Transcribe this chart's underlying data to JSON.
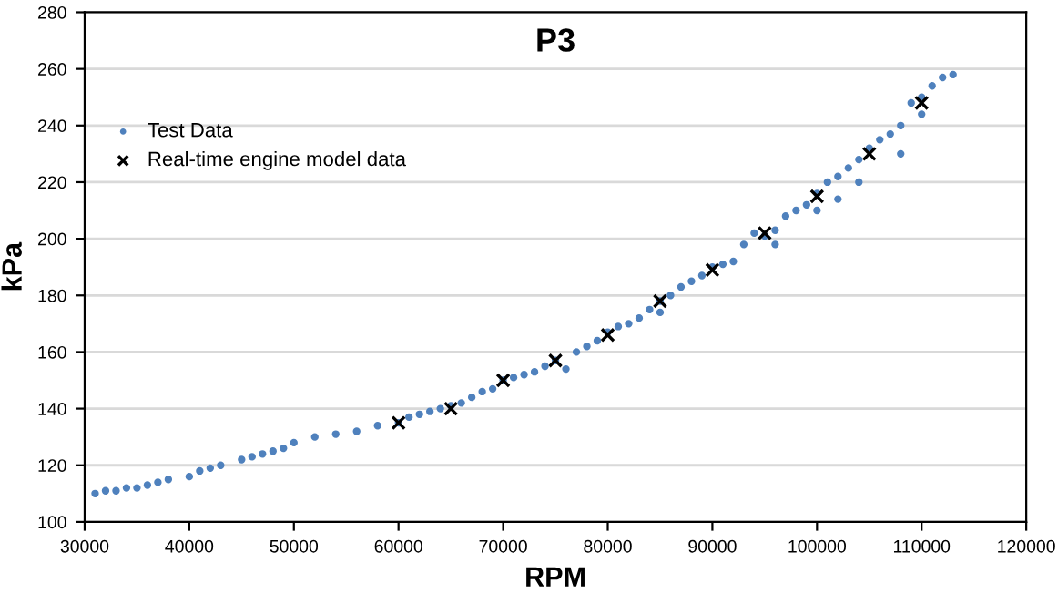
{
  "chart_data": {
    "type": "scatter",
    "title": "P3",
    "xlabel": "RPM",
    "ylabel": "kPa",
    "series": [
      {
        "name": "Test Data",
        "color": "#4f81bd",
        "marker": "circle",
        "x": [
          31000,
          32000,
          33000,
          34000,
          35000,
          36000,
          37000,
          38000,
          40000,
          41000,
          42000,
          43000,
          45000,
          46000,
          47000,
          48000,
          49000,
          50000,
          52000,
          54000,
          56000,
          58000,
          60000,
          61000,
          62000,
          63000,
          64000,
          65000,
          66000,
          67000,
          68000,
          69000,
          70000,
          71000,
          72000,
          73000,
          74000,
          75000,
          76000,
          77000,
          78000,
          79000,
          80000,
          81000,
          82000,
          83000,
          84000,
          85000,
          85000,
          86000,
          87000,
          88000,
          89000,
          90000,
          91000,
          92000,
          93000,
          94000,
          95000,
          96000,
          96000,
          97000,
          98000,
          99000,
          100000,
          100000,
          101000,
          102000,
          102000,
          103000,
          104000,
          104000,
          105000,
          106000,
          107000,
          108000,
          108000,
          109000,
          110000,
          110000,
          111000,
          112000,
          113000
        ],
        "values": [
          110,
          111,
          111,
          112,
          112,
          113,
          114,
          115,
          116,
          118,
          119,
          120,
          122,
          123,
          124,
          125,
          126,
          128,
          130,
          131,
          132,
          134,
          135,
          137,
          138,
          139,
          140,
          141,
          142,
          144,
          146,
          147,
          150,
          151,
          152,
          153,
          155,
          157,
          154,
          160,
          162,
          164,
          167,
          169,
          170,
          172,
          175,
          178,
          174,
          180,
          183,
          185,
          187,
          190,
          191,
          192,
          198,
          202,
          201,
          203,
          198,
          208,
          210,
          212,
          216,
          210,
          220,
          222,
          214,
          225,
          228,
          220,
          232,
          235,
          237,
          240,
          230,
          248,
          250,
          244,
          254,
          257,
          258
        ]
      },
      {
        "name": "Real-time engine model data",
        "color": "#000000",
        "marker": "cross",
        "x": [
          60000,
          65000,
          70000,
          75000,
          80000,
          85000,
          90000,
          95000,
          100000,
          105000,
          110000
        ],
        "values": [
          135,
          140,
          150,
          157,
          166,
          178,
          189,
          202,
          215,
          230,
          248
        ]
      }
    ],
    "xlim": [
      30000,
      120000
    ],
    "xticks": [
      30000,
      40000,
      50000,
      60000,
      70000,
      80000,
      90000,
      100000,
      110000,
      120000
    ],
    "ylim": [
      100,
      280
    ],
    "yticks": [
      100,
      120,
      140,
      160,
      180,
      200,
      220,
      240,
      260,
      280
    ],
    "grid": "y",
    "legend": "top left"
  }
}
